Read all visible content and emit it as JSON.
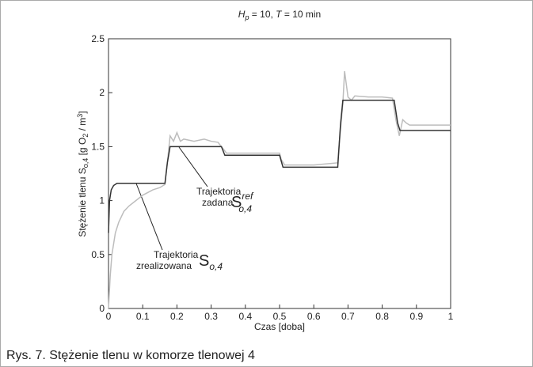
{
  "chart_data": {
    "type": "line",
    "title": [
      "H",
      "p",
      " = 10, ",
      "T",
      " = 10 min"
    ],
    "ylabel": [
      "Stężenie tlenu S",
      "o,4",
      " [g O",
      "2",
      " / m",
      "3",
      "]"
    ],
    "xlabel": "Czas [doba]",
    "caption": "Rys. 7. Stężenie tlenu w komorze tlenowej 4",
    "annotations": [
      {
        "lines": [
          "Trajektoria",
          "zadana"
        ],
        "symbol": [
          "S",
          "ref",
          "o,4"
        ]
      },
      {
        "lines": [
          "Trajektoria",
          "zrealizowana"
        ],
        "symbol": [
          "S",
          "o,4"
        ]
      }
    ],
    "xlim": [
      0,
      1
    ],
    "xticks": [
      0,
      0.1,
      0.2,
      0.3,
      0.4,
      0.5,
      0.6,
      0.7,
      0.8,
      0.9,
      1
    ],
    "ylim": [
      0,
      2.5
    ],
    "yticks": [
      0,
      0.5,
      1,
      1.5,
      2,
      2.5
    ],
    "series": [
      {
        "color": "#bdbdbd",
        "x": [
          0,
          0.005,
          0.01,
          0.02,
          0.03,
          0.045,
          0.06,
          0.08,
          0.1,
          0.13,
          0.15,
          0.165,
          0.172,
          0.18,
          0.19,
          0.2,
          0.21,
          0.22,
          0.25,
          0.28,
          0.3,
          0.32,
          0.335,
          0.345,
          0.4,
          0.5,
          0.505,
          0.515,
          0.6,
          0.67,
          0.675,
          0.685,
          0.69,
          0.7,
          0.71,
          0.72,
          0.76,
          0.8,
          0.83,
          0.84,
          0.85,
          0.86,
          0.87,
          0.88,
          0.9,
          1
        ],
        "values": [
          0,
          0.3,
          0.5,
          0.7,
          0.8,
          0.9,
          0.95,
          1.0,
          1.05,
          1.1,
          1.12,
          1.15,
          1.35,
          1.6,
          1.55,
          1.63,
          1.55,
          1.57,
          1.55,
          1.57,
          1.55,
          1.54,
          1.48,
          1.44,
          1.44,
          1.44,
          1.38,
          1.33,
          1.33,
          1.35,
          1.55,
          1.9,
          2.2,
          1.96,
          1.93,
          1.97,
          1.96,
          1.96,
          1.95,
          1.75,
          1.6,
          1.75,
          1.72,
          1.7,
          1.7,
          1.7
        ]
      },
      {
        "color": "#333333",
        "x": [
          0,
          0.003,
          0.008,
          0.015,
          0.025,
          0.165,
          0.172,
          0.18,
          0.33,
          0.34,
          0.5,
          0.51,
          0.67,
          0.678,
          0.685,
          0.835,
          0.845,
          0.852,
          1
        ],
        "values": [
          0.7,
          1.0,
          1.1,
          1.14,
          1.16,
          1.16,
          1.35,
          1.5,
          1.5,
          1.42,
          1.42,
          1.31,
          1.31,
          1.7,
          1.93,
          1.93,
          1.72,
          1.65,
          1.65
        ]
      }
    ]
  }
}
